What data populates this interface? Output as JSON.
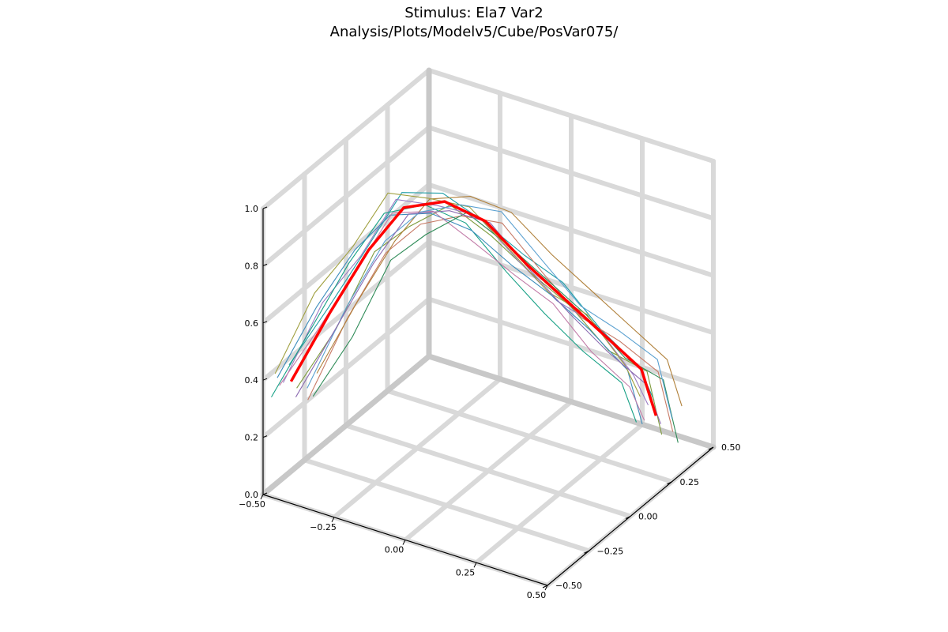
{
  "chart_data": {
    "type": "line",
    "title": "Stimulus: Ela7 Var2",
    "subtitle": "Analysis/Plots/Modelv5/Cube/PosVar075/",
    "xlim": [
      -0.5,
      0.5
    ],
    "ylim": [
      -0.5,
      0.5
    ],
    "zlim": [
      0.0,
      1.0
    ],
    "x_ticks": [
      "−0.50",
      "−0.25",
      "0.00",
      "0.25",
      "0.50"
    ],
    "y_ticks": [
      "−0.50",
      "−0.25",
      "0.00",
      "0.25",
      "0.50"
    ],
    "z_ticks": [
      "0.0",
      "0.2",
      "0.4",
      "0.6",
      "0.8",
      "1.0"
    ],
    "grid": true,
    "legend": false,
    "highlight_color": "#ff0000",
    "highlight_series": {
      "x": [
        -0.46,
        -0.38,
        -0.28,
        -0.18,
        -0.06,
        0.06,
        0.18,
        0.28,
        0.38,
        0.48,
        0.52
      ],
      "y": [
        -0.4,
        -0.3,
        -0.24,
        -0.2,
        -0.16,
        -0.12,
        -0.08,
        -0.02,
        0.04,
        0.1,
        0.12
      ],
      "z": [
        0.36,
        0.58,
        0.8,
        0.96,
        1.0,
        0.95,
        0.82,
        0.7,
        0.58,
        0.46,
        0.3
      ]
    },
    "series": [
      {
        "color": "#1f9ea6",
        "z_offset": 0.0,
        "y_offset": 0.04,
        "x_offset": -0.03
      },
      {
        "color": "#7e9b3d",
        "z_offset": -0.03,
        "y_offset": 0.0,
        "x_offset": 0.02
      },
      {
        "color": "#9a7cc4",
        "z_offset": 0.02,
        "y_offset": -0.03,
        "x_offset": -0.01
      },
      {
        "color": "#c77a66",
        "z_offset": -0.05,
        "y_offset": 0.05,
        "x_offset": 0.03
      },
      {
        "color": "#16a085",
        "z_offset": -0.02,
        "y_offset": -0.05,
        "x_offset": -0.04
      },
      {
        "color": "#b0803a",
        "z_offset": 0.01,
        "y_offset": 0.07,
        "x_offset": 0.05
      },
      {
        "color": "#3c8dbc",
        "z_offset": -0.04,
        "y_offset": 0.02,
        "x_offset": -0.06
      },
      {
        "color": "#c27ca8",
        "z_offset": -0.01,
        "y_offset": -0.07,
        "x_offset": 0.0
      },
      {
        "color": "#2e8b57",
        "z_offset": -0.06,
        "y_offset": 0.03,
        "x_offset": 0.06
      },
      {
        "color": "#a0a040",
        "z_offset": 0.03,
        "y_offset": -0.01,
        "x_offset": -0.05
      },
      {
        "color": "#5aa0d0",
        "z_offset": -0.03,
        "y_offset": 0.08,
        "x_offset": 0.01
      },
      {
        "color": "#8c6bb1",
        "z_offset": 0.0,
        "y_offset": -0.04,
        "x_offset": 0.04
      }
    ]
  }
}
